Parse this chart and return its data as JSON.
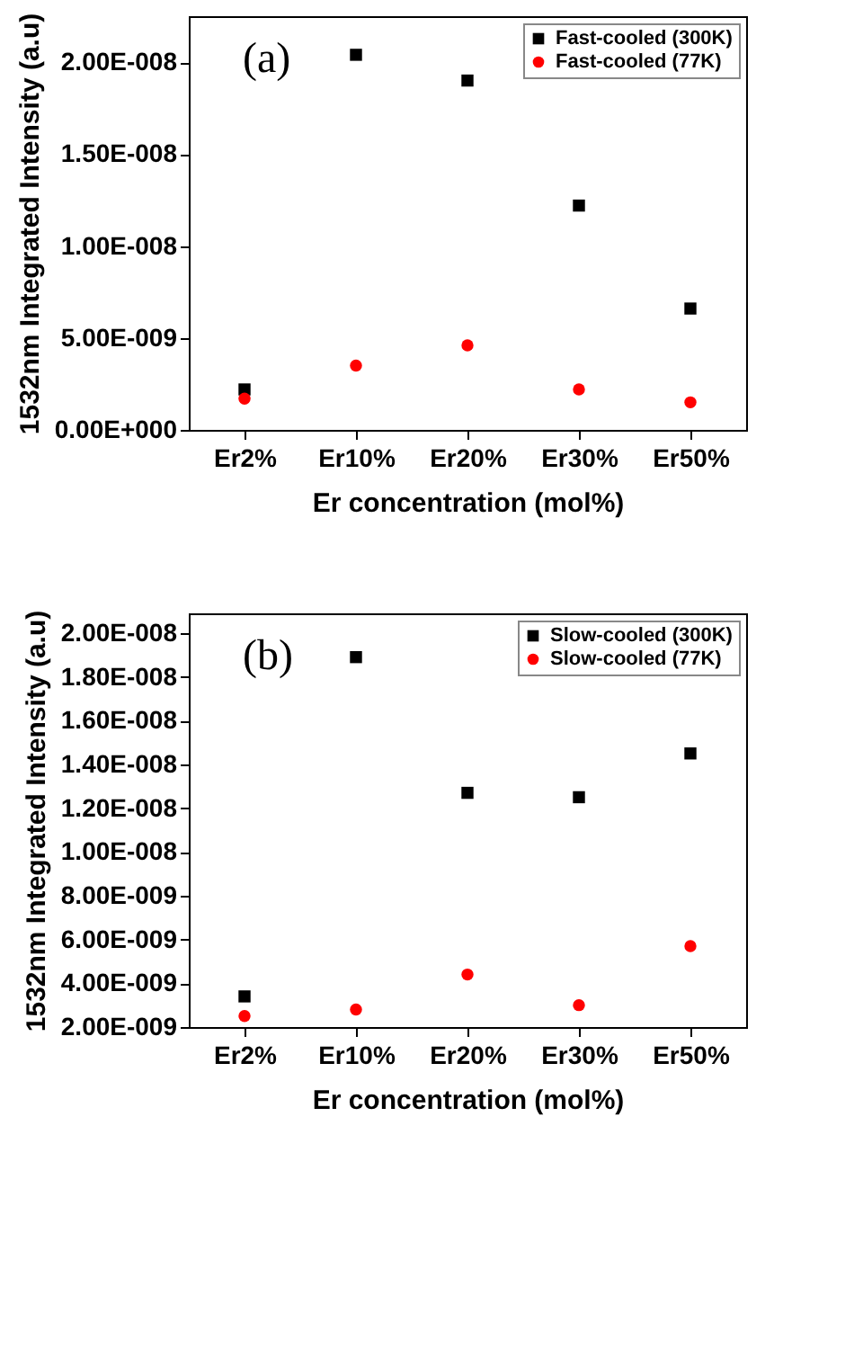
{
  "chart_data": [
    {
      "type": "scatter",
      "categories": [
        "Er2%",
        "Er10%",
        "Er20%",
        "Er30%",
        "Er50%"
      ],
      "xlabel": "Er concentration (mol%)",
      "ylabel": "1532nm Integrated Intensity (a.u)",
      "annotations": [
        "(a)"
      ],
      "ylim": [
        0,
        2.25e-08
      ],
      "yticks": [
        {
          "value": 0,
          "label": "0.00E+000"
        },
        {
          "value": 5e-09,
          "label": "5.00E-009"
        },
        {
          "value": 1e-08,
          "label": "1.00E-008"
        },
        {
          "value": 1.5e-08,
          "label": "1.50E-008"
        },
        {
          "value": 2e-08,
          "label": "2.00E-008"
        }
      ],
      "legend": "top right",
      "grid": false,
      "series": [
        {
          "name": "Fast-cooled (300K)",
          "color": "#000000",
          "marker": "square",
          "values": [
            2.2e-09,
            2.04e-08,
            1.9e-08,
            1.22e-08,
            6.6e-09
          ]
        },
        {
          "name": "Fast-cooled (77K)",
          "color": "#ff0000",
          "marker": "circle",
          "values": [
            1.7e-09,
            3.5e-09,
            4.6e-09,
            2.2e-09,
            1.5e-09
          ]
        }
      ]
    },
    {
      "type": "scatter",
      "categories": [
        "Er2%",
        "Er10%",
        "Er20%",
        "Er30%",
        "Er50%"
      ],
      "xlabel": "Er concentration (mol%)",
      "ylabel": "1532nm Integrated Intensity (a.u)",
      "annotations": [
        "(b)"
      ],
      "ylim": [
        2e-09,
        2.09e-08
      ],
      "yticks": [
        {
          "value": 2e-09,
          "label": "2.00E-009"
        },
        {
          "value": 4e-09,
          "label": "4.00E-009"
        },
        {
          "value": 6e-09,
          "label": "6.00E-009"
        },
        {
          "value": 8e-09,
          "label": "8.00E-009"
        },
        {
          "value": 1e-08,
          "label": "1.00E-008"
        },
        {
          "value": 1.2e-08,
          "label": "1.20E-008"
        },
        {
          "value": 1.4e-08,
          "label": "1.40E-008"
        },
        {
          "value": 1.6e-08,
          "label": "1.60E-008"
        },
        {
          "value": 1.8e-08,
          "label": "1.80E-008"
        },
        {
          "value": 2e-08,
          "label": "2.00E-008"
        }
      ],
      "legend": "top right",
      "grid": false,
      "series": [
        {
          "name": "Slow-cooled (300K)",
          "color": "#000000",
          "marker": "square",
          "values": [
            3.4e-09,
            1.89e-08,
            1.27e-08,
            1.25e-08,
            1.45e-08
          ]
        },
        {
          "name": "Slow-cooled (77K)",
          "color": "#ff0000",
          "marker": "circle",
          "values": [
            2.5e-09,
            2.8e-09,
            4.4e-09,
            3e-09,
            5.7e-09
          ]
        }
      ]
    }
  ]
}
